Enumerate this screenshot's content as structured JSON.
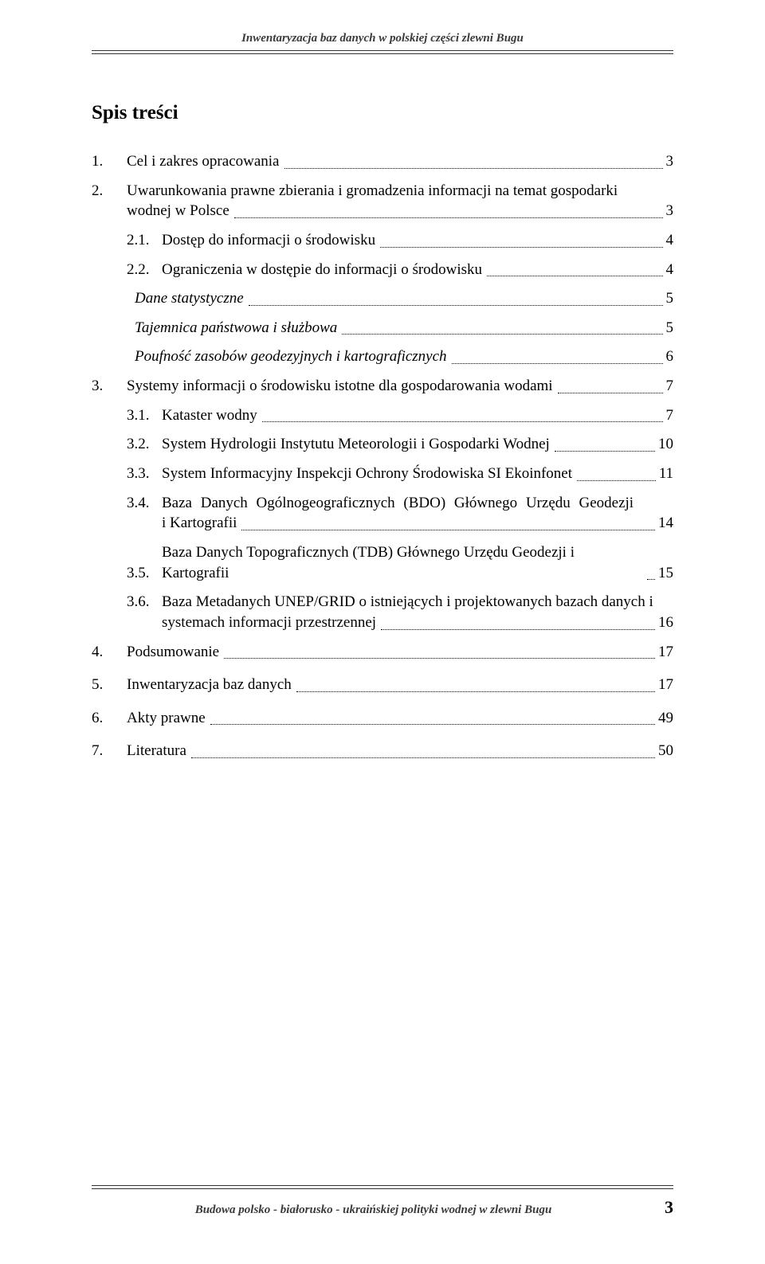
{
  "header": "Inwentaryzacja baz danych w polskiej części zlewni Bugu",
  "title": "Spis treści",
  "footer_text": "Budowa polsko - białorusko - ukraińskiej polityki wodnej w zlewni Bugu",
  "page_number": "3",
  "toc": {
    "e1": {
      "num": "1.",
      "label": "Cel i zakres opracowania",
      "page": "3"
    },
    "e2": {
      "num": "2.",
      "label_l1": "Uwarunkowania prawne zbierania i gromadzenia informacji na temat gospodarki",
      "label_l2": "wodnej w Polsce",
      "page": "3"
    },
    "e3": {
      "num": "2.1.",
      "label": "Dostęp do informacji o środowisku",
      "page": "4"
    },
    "e4": {
      "num": "2.2.",
      "label": "Ograniczenia w dostępie do informacji o środowisku",
      "page": "4"
    },
    "e5": {
      "label": "Dane statystyczne",
      "page": "5"
    },
    "e6": {
      "label": "Tajemnica państwowa i służbowa",
      "page": "5"
    },
    "e7": {
      "label": "Poufność zasobów geodezyjnych i kartograficznych",
      "page": "6"
    },
    "e8": {
      "num": "3.",
      "label": "Systemy informacji o środowisku istotne dla gospodarowania wodami",
      "page": "7"
    },
    "e9": {
      "num": "3.1.",
      "label": "Kataster wodny",
      "page": "7"
    },
    "e10": {
      "num": "3.2.",
      "label": "System Hydrologii Instytutu Meteorologii i Gospodarki Wodnej",
      "page": "10"
    },
    "e11": {
      "num": "3.3.",
      "label": "System Informacyjny Inspekcji Ochrony Środowiska SI Ekoinfonet",
      "page": "11"
    },
    "e12": {
      "num": "3.4.",
      "label_l1": "Baza  Danych  Ogólnogeograficznych  (BDO)  Głównego  Urzędu  Geodezji",
      "label_l2": "i Kartografii",
      "page": "14"
    },
    "e13": {
      "num": "3.5.",
      "label": "Baza Danych Topograficznych (TDB) Głównego Urzędu Geodezji i Kartografii",
      "page": "15"
    },
    "e14": {
      "num": "3.6.",
      "label_l1": "Baza Metadanych UNEP/GRID o istniejących i projektowanych bazach danych i",
      "label_l2": "systemach informacji przestrzennej",
      "page": "16"
    },
    "e15": {
      "num": "4.",
      "label": "Podsumowanie",
      "page": "17"
    },
    "e16": {
      "num": "5.",
      "label": "Inwentaryzacja baz danych",
      "page": "17"
    },
    "e17": {
      "num": "6.",
      "label": "Akty prawne",
      "page": "49"
    },
    "e18": {
      "num": "7.",
      "label": "Literatura",
      "page": "50"
    }
  }
}
